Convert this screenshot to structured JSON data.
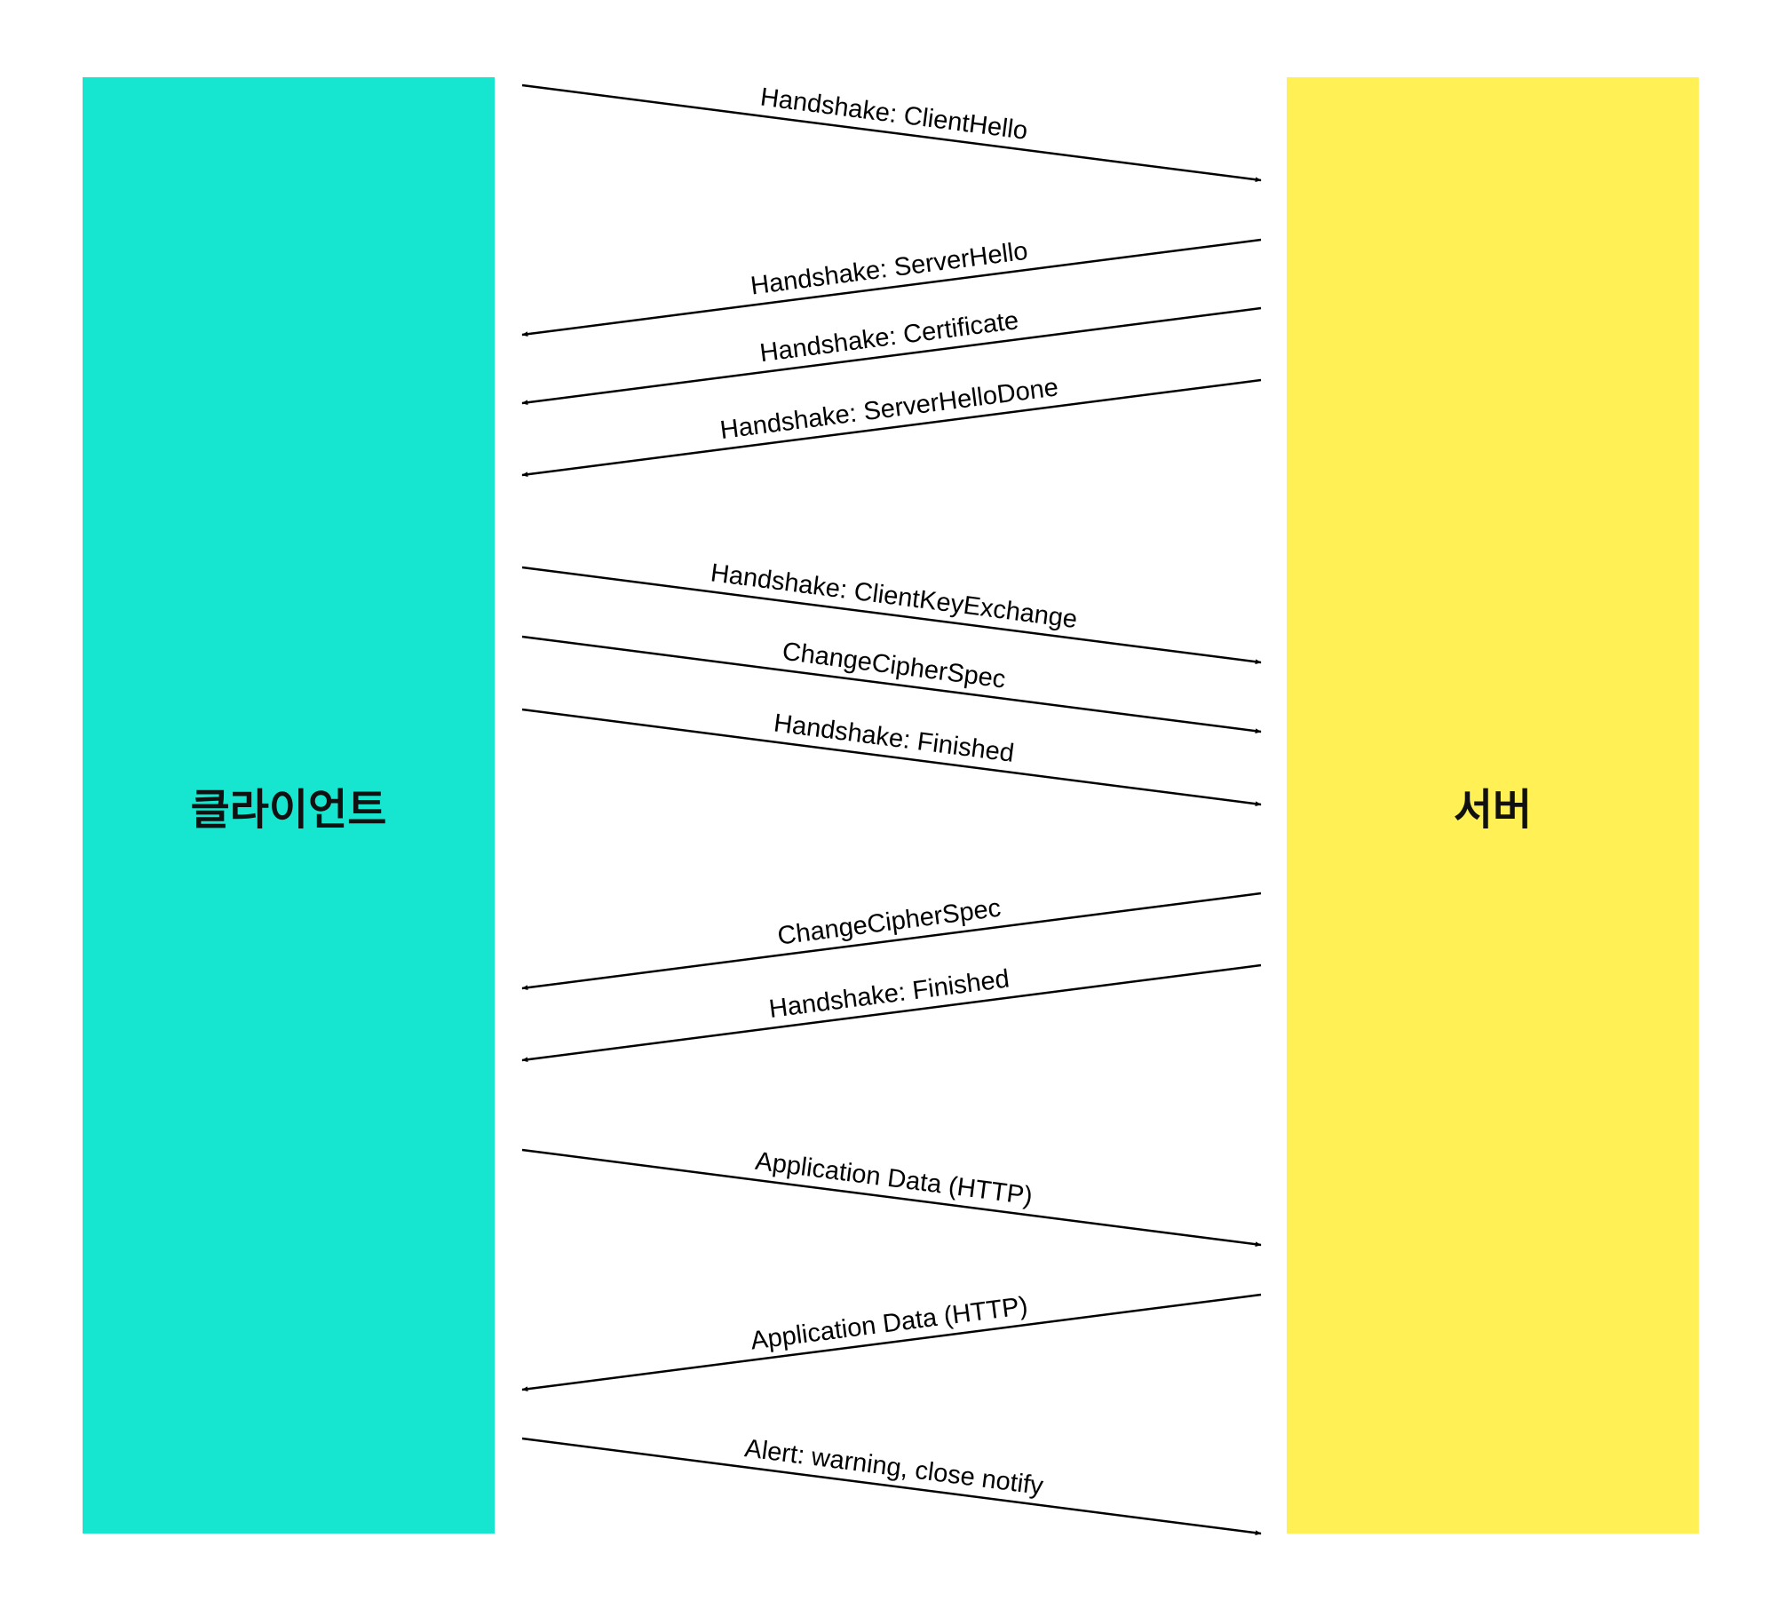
{
  "participants": {
    "client": {
      "label": "클라이언트",
      "color": "#16E6CF"
    },
    "server": {
      "label": "서버",
      "color": "#FFF056"
    }
  },
  "arrow_color": "#000000",
  "messages": [
    {
      "label": "Handshake: ClientHello",
      "direction": "client-to-server"
    },
    {
      "label": "Handshake: ServerHello",
      "direction": "server-to-client"
    },
    {
      "label": "Handshake: Certificate",
      "direction": "server-to-client"
    },
    {
      "label": "Handshake: ServerHelloDone",
      "direction": "server-to-client"
    },
    {
      "label": "Handshake: ClientKeyExchange",
      "direction": "client-to-server"
    },
    {
      "label": "ChangeCipherSpec",
      "direction": "client-to-server"
    },
    {
      "label": "Handshake: Finished",
      "direction": "client-to-server"
    },
    {
      "label": "ChangeCipherSpec",
      "direction": "server-to-client"
    },
    {
      "label": "Handshake: Finished",
      "direction": "server-to-client"
    },
    {
      "label": "Application Data (HTTP)",
      "direction": "client-to-server"
    },
    {
      "label": "Application Data (HTTP)",
      "direction": "server-to-client"
    },
    {
      "label": "Alert: warning, close notify",
      "direction": "client-to-server"
    }
  ]
}
